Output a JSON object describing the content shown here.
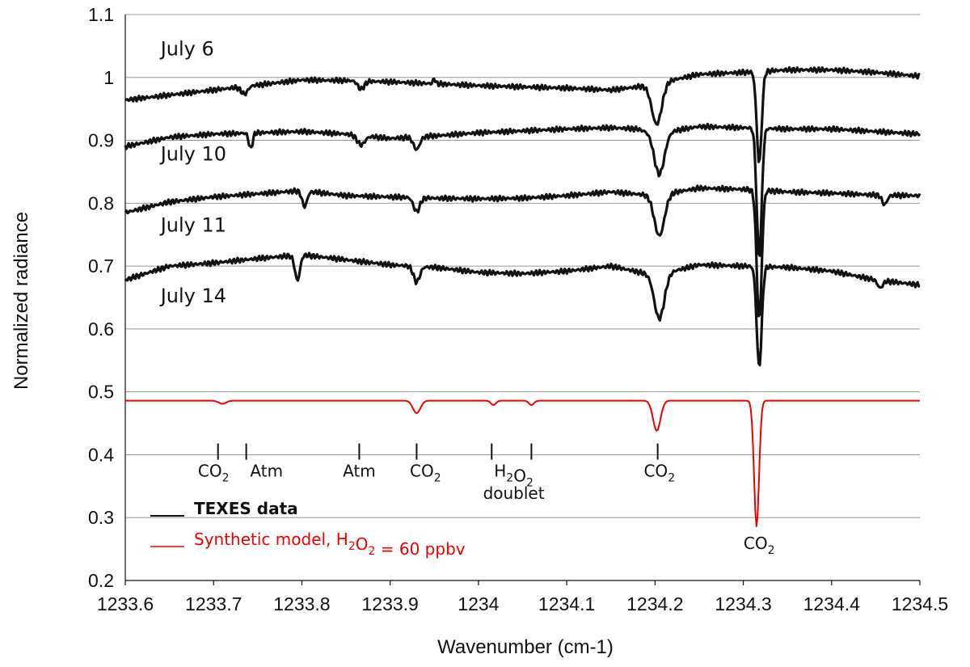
{
  "chart_data": {
    "type": "line",
    "xlabel": "Wavenumber (cm-1)",
    "ylabel": "Normalized radiance",
    "xlim": [
      1233.6,
      1234.5
    ],
    "ylim": [
      0.2,
      1.1
    ],
    "x_ticks": [
      "1233.6",
      "1233.7",
      "1233.8",
      "1233.9",
      "1234",
      "1234.1",
      "1234.2",
      "1234.3",
      "1234.4",
      "1234.5"
    ],
    "y_ticks": [
      "0.2",
      "0.3",
      "0.4",
      "0.5",
      "0.6",
      "0.7",
      "0.8",
      "0.9",
      "1",
      "1.1"
    ],
    "grid": "horizontal",
    "series": [
      {
        "name": "July 6",
        "color": "#111111",
        "label_at": [
          1233.64,
          1.035
        ],
        "baseline": [
          [
            1233.6,
            0.964
          ],
          [
            1233.65,
            0.972
          ],
          [
            1233.7,
            0.98
          ],
          [
            1233.75,
            0.988
          ],
          [
            1233.8,
            0.996
          ],
          [
            1233.85,
            0.995
          ],
          [
            1233.9,
            0.993
          ],
          [
            1233.95,
            0.99
          ],
          [
            1234.0,
            0.987
          ],
          [
            1234.05,
            0.985
          ],
          [
            1234.1,
            0.983
          ],
          [
            1234.15,
            0.98
          ],
          [
            1234.18,
            0.985
          ],
          [
            1234.2,
            0.99
          ],
          [
            1234.25,
            1.005
          ],
          [
            1234.3,
            1.008
          ],
          [
            1234.35,
            1.012
          ],
          [
            1234.4,
            1.012
          ],
          [
            1234.45,
            1.008
          ],
          [
            1234.5,
            1.002
          ]
        ],
        "dips": [
          [
            1233.735,
            0.012,
            0.005
          ],
          [
            1233.867,
            0.013,
            0.005
          ],
          [
            1234.202,
            0.065,
            0.008
          ],
          [
            1234.318,
            0.145,
            0.004
          ]
        ],
        "spikes": [
          [
            1233.95,
            0.008,
            0.002
          ]
        ]
      },
      {
        "name": "July 10",
        "color": "#111111",
        "label_at": [
          1233.64,
          0.868
        ],
        "baseline": [
          [
            1233.6,
            0.89
          ],
          [
            1233.65,
            0.905
          ],
          [
            1233.7,
            0.91
          ],
          [
            1233.75,
            0.912
          ],
          [
            1233.8,
            0.914
          ],
          [
            1233.85,
            0.91
          ],
          [
            1233.9,
            0.903
          ],
          [
            1233.95,
            0.907
          ],
          [
            1234.0,
            0.912
          ],
          [
            1234.05,
            0.915
          ],
          [
            1234.1,
            0.918
          ],
          [
            1234.15,
            0.92
          ],
          [
            1234.18,
            0.918
          ],
          [
            1234.2,
            0.91
          ],
          [
            1234.25,
            0.922
          ],
          [
            1234.3,
            0.92
          ],
          [
            1234.35,
            0.918
          ],
          [
            1234.4,
            0.918
          ],
          [
            1234.45,
            0.914
          ],
          [
            1234.5,
            0.91
          ]
        ],
        "dips": [
          [
            1233.742,
            0.025,
            0.003
          ],
          [
            1233.867,
            0.015,
            0.006
          ],
          [
            1233.93,
            0.02,
            0.005
          ],
          [
            1234.205,
            0.065,
            0.008
          ],
          [
            1234.318,
            0.205,
            0.004
          ]
        ],
        "spikes": []
      },
      {
        "name": "July 11",
        "color": "#111111",
        "label_at": [
          1233.64,
          0.755
        ],
        "baseline": [
          [
            1233.6,
            0.785
          ],
          [
            1233.65,
            0.802
          ],
          [
            1233.7,
            0.81
          ],
          [
            1233.75,
            0.815
          ],
          [
            1233.8,
            0.82
          ],
          [
            1233.85,
            0.812
          ],
          [
            1233.9,
            0.81
          ],
          [
            1233.95,
            0.808
          ],
          [
            1234.0,
            0.807
          ],
          [
            1234.05,
            0.808
          ],
          [
            1234.1,
            0.812
          ],
          [
            1234.15,
            0.818
          ],
          [
            1234.2,
            0.812
          ],
          [
            1234.25,
            0.824
          ],
          [
            1234.3,
            0.822
          ],
          [
            1234.35,
            0.818
          ],
          [
            1234.4,
            0.816
          ],
          [
            1234.45,
            0.813
          ],
          [
            1234.5,
            0.812
          ]
        ],
        "dips": [
          [
            1233.803,
            0.025,
            0.004
          ],
          [
            1233.93,
            0.022,
            0.005
          ],
          [
            1234.205,
            0.065,
            0.008
          ],
          [
            1234.318,
            0.205,
            0.004
          ],
          [
            1234.46,
            0.015,
            0.004
          ]
        ],
        "spikes": []
      },
      {
        "name": "July 14",
        "color": "#111111",
        "label_at": [
          1233.64,
          0.642
        ],
        "baseline": [
          [
            1233.6,
            0.678
          ],
          [
            1233.65,
            0.7
          ],
          [
            1233.7,
            0.705
          ],
          [
            1233.75,
            0.712
          ],
          [
            1233.8,
            0.718
          ],
          [
            1233.85,
            0.71
          ],
          [
            1233.9,
            0.702
          ],
          [
            1233.95,
            0.698
          ],
          [
            1234.0,
            0.69
          ],
          [
            1234.05,
            0.688
          ],
          [
            1234.1,
            0.692
          ],
          [
            1234.15,
            0.7
          ],
          [
            1234.2,
            0.685
          ],
          [
            1234.25,
            0.702
          ],
          [
            1234.3,
            0.7
          ],
          [
            1234.35,
            0.698
          ],
          [
            1234.4,
            0.692
          ],
          [
            1234.45,
            0.678
          ],
          [
            1234.5,
            0.67
          ]
        ],
        "dips": [
          [
            1233.795,
            0.04,
            0.004
          ],
          [
            1233.93,
            0.025,
            0.005
          ],
          [
            1234.205,
            0.07,
            0.008
          ],
          [
            1234.318,
            0.16,
            0.004
          ],
          [
            1234.455,
            0.012,
            0.004
          ]
        ],
        "spikes": []
      },
      {
        "name": "Synthetic model",
        "color": "#ee0000",
        "label_at": null,
        "baseline": [
          [
            1233.6,
            0.486
          ],
          [
            1234.5,
            0.486
          ]
        ],
        "dips": [
          [
            1233.71,
            0.005,
            0.006
          ],
          [
            1233.93,
            0.02,
            0.006
          ],
          [
            1234.017,
            0.007,
            0.004
          ],
          [
            1234.06,
            0.007,
            0.004
          ],
          [
            1234.202,
            0.048,
            0.006
          ],
          [
            1234.315,
            0.2,
            0.004
          ]
        ],
        "spikes": []
      }
    ],
    "tick_marks_y": 0.405,
    "tick_marks_x": [
      1233.705,
      1233.737,
      1233.865,
      1233.93,
      1234.015,
      1234.06,
      1234.203
    ],
    "annotations": [
      {
        "id": "co2-1",
        "parts": [
          [
            "CO",
            "2"
          ]
        ],
        "x": 1233.7,
        "y": 0.365
      },
      {
        "id": "atm-1",
        "text": "Atm",
        "x": 1233.76,
        "y": 0.365
      },
      {
        "id": "atm-2",
        "text": "Atm",
        "x": 1233.865,
        "y": 0.365
      },
      {
        "id": "co2-2",
        "parts": [
          [
            "CO",
            "2"
          ]
        ],
        "x": 1233.94,
        "y": 0.365
      },
      {
        "id": "h2o2",
        "parts": [
          [
            "H",
            "2"
          ],
          [
            "O",
            "2"
          ]
        ],
        "x": 1234.04,
        "y": 0.365
      },
      {
        "id": "doublet",
        "text": "doublet",
        "x": 1234.04,
        "y": 0.33
      },
      {
        "id": "co2-3",
        "parts": [
          [
            "CO",
            "2"
          ]
        ],
        "x": 1234.205,
        "y": 0.365
      },
      {
        "id": "co2-4",
        "parts": [
          [
            "CO",
            "2"
          ]
        ],
        "x": 1234.318,
        "y": 0.25
      }
    ],
    "legend": {
      "position": "bottom-left",
      "entries": [
        {
          "label": "TEXES data",
          "color": "#111111",
          "bold": true
        },
        {
          "label_parts": [
            [
              "Synthetic model, H",
              ""
            ],
            [
              "",
              "2"
            ],
            [
              "O",
              ""
            ],
            [
              "",
              "2"
            ],
            [
              " = 60 ppbv",
              ""
            ]
          ],
          "label": "Synthetic model, H2O2 = 60 ppbv",
          "color": "#ee0000",
          "bold": false
        }
      ]
    }
  }
}
